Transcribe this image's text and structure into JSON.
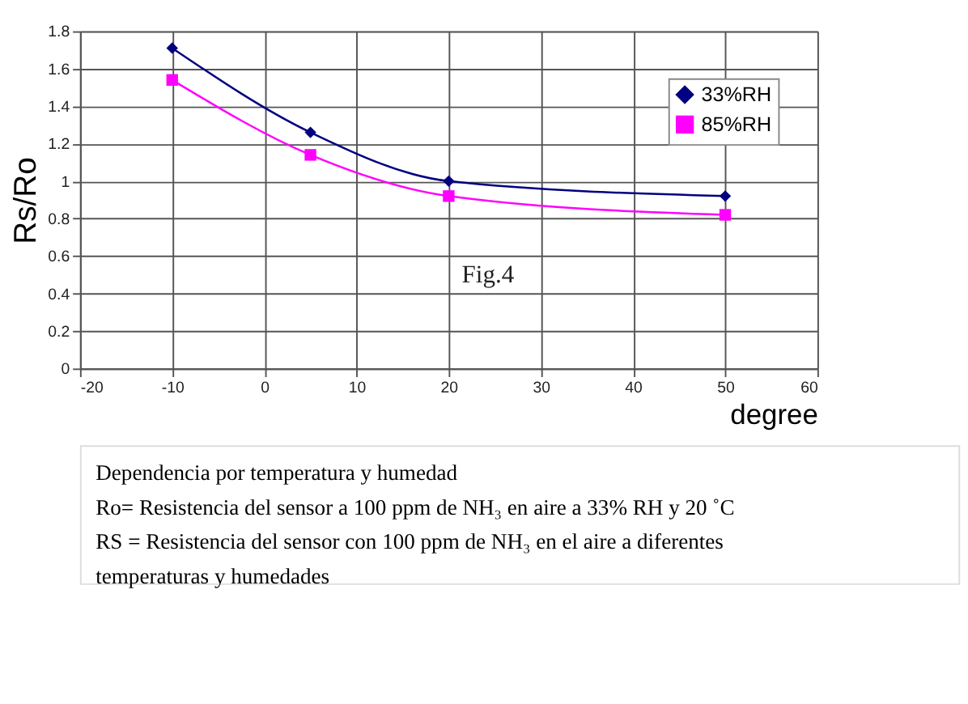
{
  "chart_data": {
    "type": "line",
    "xlabel": "degree",
    "ylabel": "Rs/Ro",
    "x": [
      -10,
      5,
      20,
      50
    ],
    "series": [
      {
        "name": "33%RH",
        "color": "#000080",
        "marker": "diamond",
        "values": [
          1.71,
          1.26,
          1.0,
          0.92
        ]
      },
      {
        "name": "85%RH",
        "color": "#ff00ff",
        "marker": "square",
        "values": [
          1.54,
          1.14,
          0.92,
          0.82
        ]
      }
    ],
    "xlim": [
      -20,
      60
    ],
    "xticks": [
      -20,
      -10,
      0,
      10,
      20,
      30,
      40,
      50,
      60
    ],
    "ylim": [
      0,
      1.8
    ],
    "yticks": [
      0,
      {
        "value": 0.2,
        "label": "0.2"
      },
      {
        "value": 0.4,
        "label": "0.4"
      },
      {
        "value": 0.6,
        "label": "0.6"
      },
      {
        "value": 0.8,
        "label": "0.8"
      },
      1,
      {
        "value": 1.2,
        "label": "1.2"
      },
      {
        "value": 1.4,
        "label": "1.4"
      },
      {
        "value": 1.6,
        "label": "1.6"
      },
      {
        "value": 1.8,
        "label": "1.8"
      }
    ],
    "grid": true,
    "legend": "top right",
    "line_style": "solid",
    "annotations": [
      "Fig.4",
      "Dependencia por temperatura y humedad",
      "Ro= Resistencia del sensor a 100 ppm de NH₃ en aire a 33% RH y 20 ˚C",
      "RS = Resistencia del sensor con 100 ppm de NH₃ en el aire a diferentes temperaturas y humedades"
    ]
  }
}
